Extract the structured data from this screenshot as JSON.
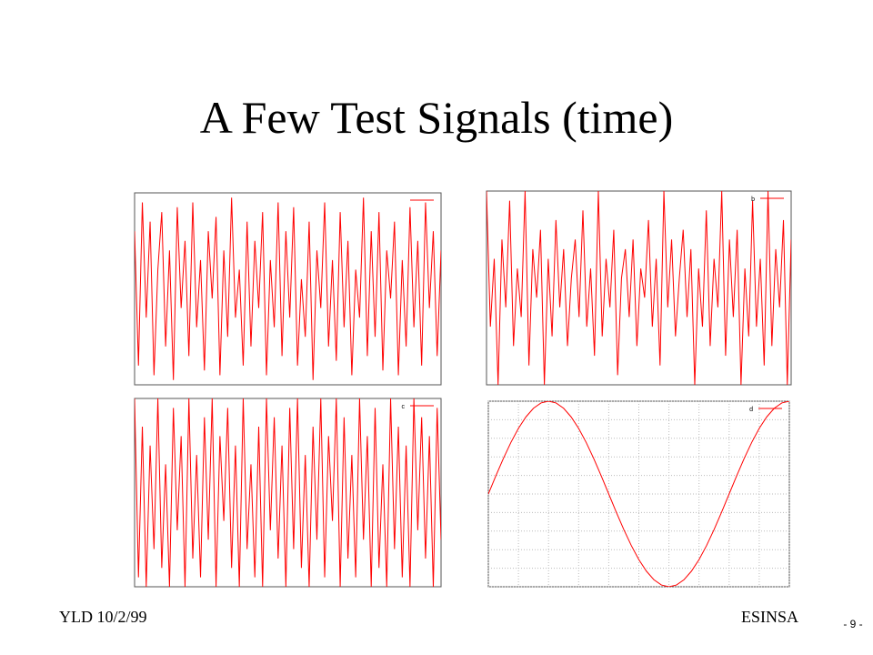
{
  "slide": {
    "title": "A Few Test Signals (time)",
    "footer_left": "YLD 10/2/99",
    "footer_right": "ESINSA",
    "page_number": "- 9 -"
  },
  "chart_data": [
    {
      "type": "line",
      "ylim": [
        -1,
        1
      ],
      "grid": false,
      "legend": "upper right",
      "series": [
        {
          "color": "#ff0000",
          "values": [
            0.6,
            -0.8,
            0.9,
            -0.3,
            0.7,
            -0.9,
            0.2,
            0.8,
            -0.6,
            0.4,
            -0.95,
            0.85,
            -0.2,
            0.5,
            -0.7,
            0.9,
            -0.4,
            0.3,
            -0.85,
            0.6,
            -0.1,
            0.75,
            -0.9,
            0.4,
            -0.5,
            0.95,
            -0.3,
            0.2,
            -0.8,
            0.7,
            -0.6,
            0.5,
            -0.2,
            0.8,
            -0.9,
            0.3,
            -0.4,
            0.9,
            -0.7,
            0.6,
            -0.3,
            0.85,
            -0.8,
            0.1,
            -0.5,
            0.7,
            -0.95,
            0.4,
            -0.2,
            0.9,
            -0.6,
            0.3,
            -0.75,
            0.8,
            -0.4,
            0.5,
            -0.9,
            0.2,
            -0.3,
            0.95,
            -0.7,
            0.6,
            -0.5,
            0.8,
            -0.85,
            0.4,
            -0.1,
            0.7,
            -0.9,
            0.3,
            -0.6,
            0.85,
            -0.4,
            0.5,
            -0.8,
            0.9,
            -0.2,
            0.6,
            -0.7,
            0.4
          ]
        }
      ]
    },
    {
      "type": "line",
      "ylim": [
        -1,
        1
      ],
      "grid": false,
      "legend": "upper right",
      "series": [
        {
          "name": "b",
          "color": "#ff0000",
          "values": [
            1,
            -0.4,
            0.3,
            -1,
            0.5,
            -0.2,
            0.9,
            -0.6,
            0.2,
            -0.3,
            1,
            -0.8,
            0.4,
            -0.1,
            0.6,
            -1,
            0.3,
            -0.5,
            0.7,
            -0.2,
            0.4,
            -0.6,
            0.1,
            0.5,
            -0.3,
            0.8,
            -0.4,
            0.2,
            -0.7,
            1,
            -0.5,
            0.3,
            -0.2,
            0.6,
            -0.9,
            0.1,
            0.4,
            -0.3,
            0.5,
            -0.6,
            0.2,
            -0.1,
            0.7,
            -0.4,
            0.3,
            -0.8,
            1,
            -0.2,
            0.5,
            -0.5,
            0.1,
            0.6,
            -0.3,
            0.4,
            -1,
            0.2,
            -0.4,
            0.8,
            -0.6,
            0.3,
            -0.2,
            1,
            -0.7,
            0.5,
            -0.3,
            0.6,
            -1,
            0.2,
            -0.5,
            0.9,
            -0.4,
            0.3,
            -0.8,
            1,
            -0.6,
            0.4,
            -0.2,
            0.7,
            -1,
            0.5
          ]
        }
      ]
    },
    {
      "type": "line",
      "ylim": [
        -1,
        1
      ],
      "grid": false,
      "legend": "upper right",
      "series": [
        {
          "name": "c",
          "color": "#ff0000",
          "values": [
            1,
            -0.9,
            0.7,
            -1,
            0.5,
            -0.6,
            1,
            -0.8,
            0.3,
            -1,
            0.9,
            -0.4,
            0.6,
            -1,
            1,
            -0.7,
            0.4,
            -0.9,
            0.8,
            -0.5,
            1,
            -1,
            0.6,
            -0.3,
            0.9,
            -0.8,
            0.5,
            -1,
            1,
            -0.6,
            0.3,
            -0.9,
            0.7,
            -1,
            1,
            -0.4,
            0.8,
            -0.7,
            0.5,
            -1,
            0.9,
            -0.6,
            1,
            -0.8,
            0.4,
            -1,
            0.7,
            -0.5,
            1,
            -0.9,
            0.6,
            -0.3,
            1,
            -1,
            0.8,
            -0.7,
            0.4,
            -0.9,
            1,
            -0.5,
            0.6,
            -1,
            0.9,
            -0.8,
            0.3,
            -1,
            1,
            -0.6,
            0.7,
            -0.9,
            0.5,
            -1,
            1,
            -0.4,
            0.8,
            -0.7,
            0.6,
            -1,
            0.9,
            -0.5
          ]
        }
      ]
    },
    {
      "type": "line",
      "xlim": [
        0,
        1
      ],
      "ylim": [
        -1,
        1
      ],
      "grid": true,
      "legend": "upper right",
      "xticks": [
        0,
        0.1,
        0.2,
        0.3,
        0.4,
        0.5,
        0.6,
        0.7,
        0.8,
        0.9,
        1
      ],
      "yticks": [
        -1,
        -0.8,
        -0.6,
        -0.4,
        -0.2,
        0,
        0.2,
        0.4,
        0.6,
        0.8,
        1
      ],
      "x": [
        0,
        0.025,
        0.05,
        0.075,
        0.1,
        0.125,
        0.15,
        0.175,
        0.2,
        0.225,
        0.25,
        0.275,
        0.3,
        0.325,
        0.35,
        0.375,
        0.4,
        0.425,
        0.45,
        0.475,
        0.5,
        0.525,
        0.55,
        0.575,
        0.6,
        0.625,
        0.65,
        0.675,
        0.7,
        0.725,
        0.75,
        0.775,
        0.8,
        0.825,
        0.85,
        0.875,
        0.9,
        0.925,
        0.95,
        0.975,
        1
      ],
      "series": [
        {
          "name": "d",
          "color": "#ff0000",
          "values": [
            0,
            0.195,
            0.383,
            0.556,
            0.707,
            0.831,
            0.924,
            0.981,
            1,
            0.981,
            0.924,
            0.831,
            0.707,
            0.556,
            0.383,
            0.195,
            0,
            -0.195,
            -0.383,
            -0.556,
            -0.707,
            -0.831,
            -0.924,
            -0.981,
            -1,
            -0.981,
            -0.924,
            -0.831,
            -0.707,
            -0.556,
            -0.383,
            -0.195,
            0,
            0.195,
            0.383,
            0.556,
            0.707,
            0.831,
            0.924,
            0.981,
            1
          ]
        }
      ]
    }
  ]
}
